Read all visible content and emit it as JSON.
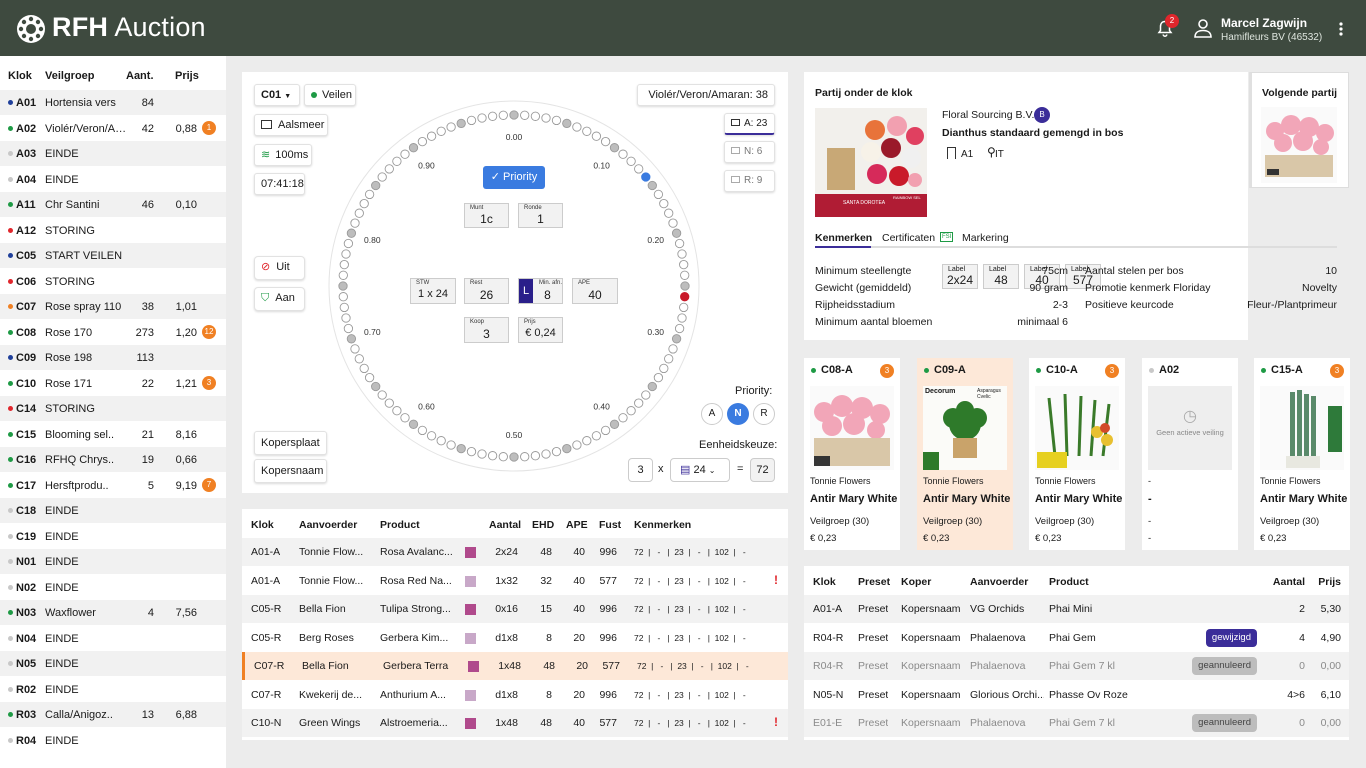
{
  "header": {
    "brand_bold": "RFH",
    "brand_rest": "Auction",
    "notifications": "2",
    "user_name": "Marcel  Zagwijn",
    "user_company": "Hamifleurs BV (46532)"
  },
  "left": {
    "headers": [
      "Klok",
      "Veilgroep",
      "Aant.",
      "Prijs"
    ],
    "rows": [
      {
        "k": "A01",
        "dot": "#1f3f9a",
        "v": "Hortensia vers",
        "a": "84",
        "p": "",
        "b": ""
      },
      {
        "k": "A02",
        "dot": "#1e9a45",
        "v": "Violér/Veron/Am...",
        "a": "42",
        "p": "0,88",
        "b": "1"
      },
      {
        "k": "A03",
        "dot": "#c8c8c8",
        "v": "EINDE",
        "a": "",
        "p": "",
        "b": ""
      },
      {
        "k": "A04",
        "dot": "#c8c8c8",
        "v": "EINDE",
        "a": "",
        "p": "",
        "b": ""
      },
      {
        "k": "A11",
        "dot": "#1e9a45",
        "v": "Chr Santini",
        "a": "46",
        "p": "0,10",
        "b": ""
      },
      {
        "k": "A12",
        "dot": "#e0262c",
        "v": "STORING",
        "a": "",
        "p": "",
        "b": ""
      },
      {
        "k": "C05",
        "dot": "#1f3f9a",
        "v": "START VEILEN",
        "a": "",
        "p": "",
        "b": ""
      },
      {
        "k": "C06",
        "dot": "#e0262c",
        "v": "STORING",
        "a": "",
        "p": "",
        "b": ""
      },
      {
        "k": "C07",
        "dot": "#f08023",
        "v": "Rose spray 110",
        "a": "38",
        "p": "1,01",
        "b": ""
      },
      {
        "k": "C08",
        "dot": "#1e9a45",
        "v": "Rose 170",
        "a": "273",
        "p": "1,20",
        "b": "12"
      },
      {
        "k": "C09",
        "dot": "#1f3f9a",
        "v": "Rose 198",
        "a": "113",
        "p": "",
        "b": ""
      },
      {
        "k": "C10",
        "dot": "#1e9a45",
        "v": "Rose 171",
        "a": "22",
        "p": "1,21",
        "b": "3"
      },
      {
        "k": "C14",
        "dot": "#e0262c",
        "v": "STORING",
        "a": "",
        "p": "",
        "b": ""
      },
      {
        "k": "C15",
        "dot": "#1e9a45",
        "v": "Blooming sel..",
        "a": "21",
        "p": "8,16",
        "b": ""
      },
      {
        "k": "C16",
        "dot": "#1e9a45",
        "v": "RFHQ Chrys..",
        "a": "19",
        "p": "0,66",
        "b": ""
      },
      {
        "k": "C17",
        "dot": "#1e9a45",
        "v": "Hersftprodu..",
        "a": "5",
        "p": "9,19",
        "b": "7"
      },
      {
        "k": "C18",
        "dot": "#c8c8c8",
        "v": "EINDE",
        "a": "",
        "p": "",
        "b": ""
      },
      {
        "k": "C19",
        "dot": "#c8c8c8",
        "v": "EINDE",
        "a": "",
        "p": "",
        "b": ""
      },
      {
        "k": "N01",
        "dot": "#c8c8c8",
        "v": "EINDE",
        "a": "",
        "p": "",
        "b": ""
      },
      {
        "k": "N02",
        "dot": "#c8c8c8",
        "v": "EINDE",
        "a": "",
        "p": "",
        "b": ""
      },
      {
        "k": "N03",
        "dot": "#1e9a45",
        "v": "Waxflower",
        "a": "4",
        "p": "7,56",
        "b": ""
      },
      {
        "k": "N04",
        "dot": "#c8c8c8",
        "v": "EINDE",
        "a": "",
        "p": "",
        "b": ""
      },
      {
        "k": "N05",
        "dot": "#c8c8c8",
        "v": "EINDE",
        "a": "",
        "p": "",
        "b": ""
      },
      {
        "k": "R02",
        "dot": "#c8c8c8",
        "v": "EINDE",
        "a": "",
        "p": "",
        "b": ""
      },
      {
        "k": "R03",
        "dot": "#1e9a45",
        "v": "Calla/Anigoz..",
        "a": "13",
        "p": "6,88",
        "b": ""
      },
      {
        "k": "R04",
        "dot": "#c8c8c8",
        "v": "EINDE",
        "a": "",
        "p": "",
        "b": ""
      }
    ]
  },
  "clock": {
    "select": "C01",
    "status": "Veilen",
    "location": "Aalsmeer",
    "latency": "100ms",
    "time": "07:41:18",
    "group": "Violér/Veron/Amaran: 38",
    "tab_a": "A: 23",
    "tab_n": "N: 6",
    "tab_r": "R: 9",
    "priority_btn": "Priority",
    "munt_l": "Munt",
    "munt": "1c",
    "ronde_l": "Ronde",
    "ronde": "1",
    "stw_l": "STW",
    "stw": "1 x 24",
    "rest_l": "Rest",
    "rest": "26",
    "min_l": "Min. afn.",
    "l": "L",
    "min": "8",
    "ape_l": "APE",
    "ape": "40",
    "koop_l": "Koop",
    "koop": "3",
    "prijs_l": "Prijs",
    "prijs": "€ 0,24",
    "ticks": [
      "0.00",
      "0.10",
      "0.20",
      "0.30",
      "0.40",
      "0.50",
      "0.60",
      "0.70",
      "0.80",
      "0.90"
    ],
    "uit": "Uit",
    "aan": "Aan",
    "kopersplaat": "Kopersplaat",
    "kopersnaam": "Kopersnaam",
    "priority_label": "Priority:",
    "prio": [
      "A",
      "N",
      "R"
    ],
    "eenheid_label": "Eenheidskeuze:",
    "qty": "3",
    "x": "x",
    "unit": "24",
    "eq": "=",
    "total": "72"
  },
  "lot": {
    "title": "Partij onder de klok",
    "supplier": "Floral Sourcing B.V.",
    "grade": "B",
    "product": "Dianthus standaard gemengd in bos",
    "location": "A1",
    "country": "IT",
    "label_word": "Label",
    "labels": [
      "2x24",
      "48",
      "40",
      "577"
    ],
    "tabs": [
      "Kenmerken",
      "Certificaten",
      "Markering"
    ],
    "cert_badge": "FSI",
    "specs_left": [
      {
        "k": "Minimum steellengte",
        "v": "75cm"
      },
      {
        "k": "Gewicht (gemiddeld)",
        "v": "90 gram"
      },
      {
        "k": "Rijpheidsstadium",
        "v": "2-3"
      },
      {
        "k": "Minimum aantal bloemen",
        "v": "minimaal 6"
      }
    ],
    "specs_right": [
      {
        "k": "Aantal stelen per bos",
        "v": "10"
      },
      {
        "k": "Promotie kenmerk Floriday",
        "v": "Novelty"
      },
      {
        "k": "Positieve keurcode",
        "v": "Fleur-/Plantprimeur"
      }
    ],
    "next_title": "Volgende partij",
    "img_brand": "SANTA DOROTEA",
    "img_rainbow": "RAINBOW SEL"
  },
  "lots": [
    {
      "code": "C08-A",
      "dot": "#1e9a45",
      "badge": "3",
      "l1": "Tonnie Flowers",
      "l2": "Antir Mary White",
      "l3": "Veilgroep (30)",
      "l4": "€ 0,23",
      "hl": false
    },
    {
      "code": "C09-A",
      "dot": "#1e9a45",
      "badge": "",
      "l1": "Tonnie Flowers",
      "l2": "Antir Mary White",
      "l3": "Veilgroep (30)",
      "l4": "€ 0,23",
      "hl": true,
      "img_text1": "Decorum",
      "img_text2": "Asparagus Cvelic"
    },
    {
      "code": "C10-A",
      "dot": "#1e9a45",
      "badge": "3",
      "l1": "Tonnie Flowers",
      "l2": "Antir Mary White",
      "l3": "Veilgroep (30)",
      "l4": "€ 0,23",
      "hl": false
    },
    {
      "code": "A02",
      "dot": "#c8c8c8",
      "badge": "",
      "l1": "-",
      "l2": "-",
      "l3": "-",
      "l4": "-",
      "hl": false,
      "empty": "Geen actieve veiling"
    },
    {
      "code": "C15-A",
      "dot": "#1e9a45",
      "badge": "3",
      "l1": "Tonnie Flowers",
      "l2": "Antir Mary White",
      "l3": "Veilgroep (30)",
      "l4": "€ 0,23",
      "hl": false
    }
  ],
  "purchases": {
    "headers": [
      "Klok",
      "Aanvoerder",
      "Product",
      "Aantal",
      "EHD",
      "APE",
      "Fust",
      "Kenmerken"
    ],
    "rows": [
      {
        "klok": "A01-A",
        "aanv": "Tonnie Flow...",
        "prod": "Rosa Avalanc...",
        "sw": "#b04a8c",
        "aantal": "2x24",
        "ehd": "48",
        "ape": "40",
        "fust": "996",
        "ken": "72  |   -   |  23  |   -   |  102  |   -",
        "warn": "",
        "hl": false
      },
      {
        "klok": "A01-A",
        "aanv": "Tonnie Flow...",
        "prod": "Rosa Red Na...",
        "sw": "#c8a8c8",
        "aantal": "1x32",
        "ehd": "32",
        "ape": "40",
        "fust": "577",
        "ken": "72  |   -   |  23  |   -   |  102  |   -",
        "warn": "!",
        "hl": false
      },
      {
        "klok": "C05-R",
        "aanv": "Bella Fion",
        "prod": "Tulipa Strong...",
        "sw": "#b04a8c",
        "aantal": "0x16",
        "ehd": "15",
        "ape": "40",
        "fust": "996",
        "ken": "72  |   -   |  23  |   -   |  102  |   -",
        "warn": "",
        "hl": false
      },
      {
        "klok": "C05-R",
        "aanv": "Berg Roses",
        "prod": "Gerbera Kim...",
        "sw": "#c8a8c8",
        "aantal": "d1x8",
        "ehd": "8",
        "ape": "20",
        "fust": "996",
        "ken": "72  |   -   |  23  |   -   |  102  |   -",
        "warn": "",
        "hl": false
      },
      {
        "klok": "C07-R",
        "aanv": "Bella Fion",
        "prod": "Gerbera Terra",
        "sw": "#b04a8c",
        "aantal": "1x48",
        "ehd": "48",
        "ape": "20",
        "fust": "577",
        "ken": "72  |   -   |  23  |   -   |  102  |   -",
        "warn": "",
        "hl": true
      },
      {
        "klok": "C07-R",
        "aanv": "Kwekerij de...",
        "prod": "Anthurium A...",
        "sw": "#c8a8c8",
        "aantal": "d1x8",
        "ehd": "8",
        "ape": "20",
        "fust": "996",
        "ken": "72  |   -   |  23  |   -   |  102  |   -",
        "warn": "",
        "hl": false
      },
      {
        "klok": "C10-N",
        "aanv": "Green Wings",
        "prod": "Alstroemeria...",
        "sw": "#b04a8c",
        "aantal": "1x48",
        "ehd": "48",
        "ape": "40",
        "fust": "577",
        "ken": "72  |   -   |  23  |   -   |  102  |   -",
        "warn": "!",
        "hl": false
      }
    ]
  },
  "orders": {
    "headers": [
      "Klok",
      "Preset",
      "Koper",
      "Aanvoerder",
      "Product",
      "Aantal",
      "Prijs"
    ],
    "rows": [
      {
        "klok": "A01-A",
        "preset": "Preset",
        "koper": "Kopersnaam",
        "aanv": "VG Orchids",
        "prod": "Phai Mini",
        "tag": "",
        "aantal": "2",
        "prijs": "5,30",
        "muted": false
      },
      {
        "klok": "R04-R",
        "preset": "Preset",
        "koper": "Kopersnaam",
        "aanv": "Phalaenova",
        "prod": "Phai Gem",
        "tag": "gewijzigd",
        "aantal": "4",
        "prijs": "4,90",
        "muted": false
      },
      {
        "klok": "R04-R",
        "preset": "Preset",
        "koper": "Kopersnaam",
        "aanv": "Phalaenova",
        "prod": "Phai Gem 7 kl",
        "tag": "geannuleerd",
        "aantal": "0",
        "prijs": "0,00",
        "muted": true
      },
      {
        "klok": "N05-N",
        "preset": "Preset",
        "koper": "Kopersnaam",
        "aanv": "Glorious Orchi...",
        "prod": "Phasse Ov Roze",
        "tag": "",
        "aantal": "4>6",
        "prijs": "6,10",
        "muted": false
      },
      {
        "klok": "E01-E",
        "preset": "Preset",
        "koper": "Kopersnaam",
        "aanv": "Phalaenova",
        "prod": "Phai Gem 7 kl",
        "tag": "geannuleerd",
        "aantal": "0",
        "prijs": "0,00",
        "muted": true
      }
    ]
  },
  "colors": {
    "header": "#3e4a3f",
    "accent": "#3b2d99",
    "status_green": "#1e9a45",
    "alert": "#e0262c",
    "badge_orange": "#f08023",
    "highlight": "#fde8d8",
    "priority_blue": "#3a7be0"
  }
}
